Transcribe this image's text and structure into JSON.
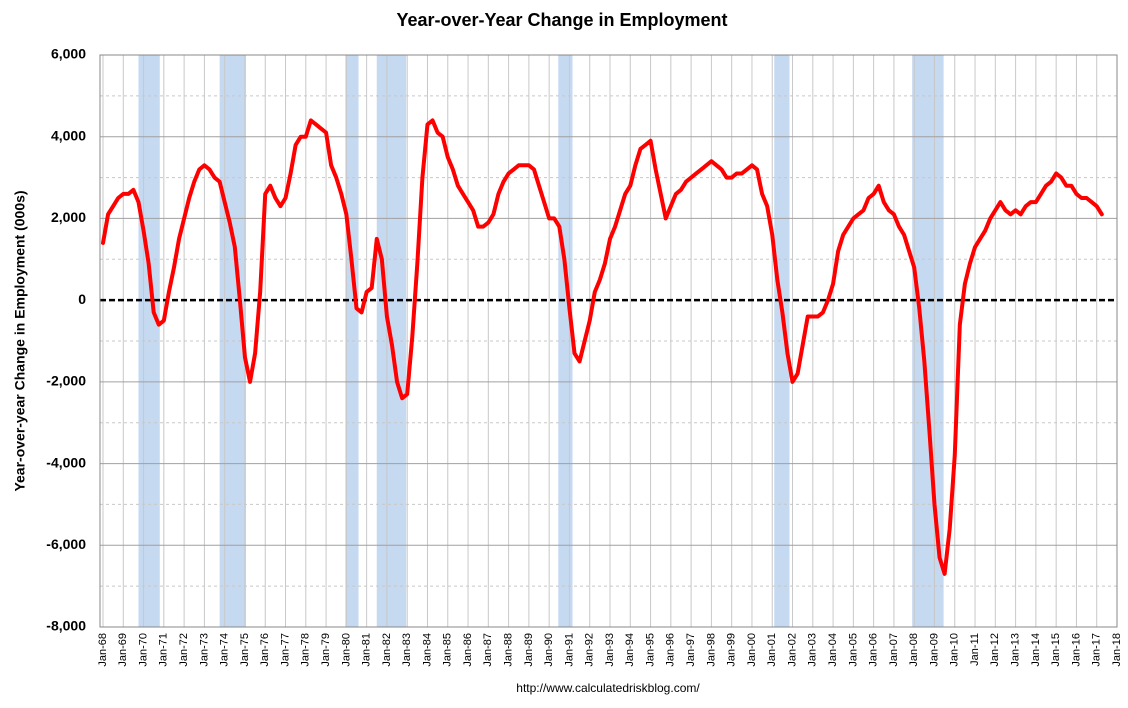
{
  "chart_data": {
    "type": "line",
    "title": "Year-over-Year Change in Employment",
    "y_label": "Year-over-year Change in Employment (000s)",
    "source": "http://www.calculatedriskblog.com/",
    "categories": [
      "Jan-68",
      null,
      null,
      null,
      "Jan-69",
      null,
      null,
      null,
      "Jan-70",
      null,
      null,
      null,
      "Jan-71",
      null,
      null,
      null,
      "Jan-72",
      null,
      null,
      null,
      "Jan-73",
      null,
      null,
      null,
      "Jan-74",
      null,
      null,
      null,
      "Jan-75",
      null,
      null,
      null,
      "Jan-76",
      null,
      null,
      null,
      "Jan-77",
      null,
      null,
      null,
      "Jan-78",
      null,
      null,
      null,
      "Jan-79",
      null,
      null,
      null,
      "Jan-80",
      null,
      null,
      null,
      "Jan-81",
      null,
      null,
      null,
      "Jan-82",
      null,
      null,
      null,
      "Jan-83",
      null,
      null,
      null,
      "Jan-84",
      null,
      null,
      null,
      "Jan-85",
      null,
      null,
      null,
      "Jan-86",
      null,
      null,
      null,
      "Jan-87",
      null,
      null,
      null,
      "Jan-88",
      null,
      null,
      null,
      "Jan-89",
      null,
      null,
      null,
      "Jan-90",
      null,
      null,
      null,
      "Jan-91",
      null,
      null,
      null,
      "Jan-92",
      null,
      null,
      null,
      "Jan-93",
      null,
      null,
      null,
      "Jan-94",
      null,
      null,
      null,
      "Jan-95",
      null,
      null,
      null,
      "Jan-96",
      null,
      null,
      null,
      "Jan-97",
      null,
      null,
      null,
      "Jan-98",
      null,
      null,
      null,
      "Jan-99",
      null,
      null,
      null,
      "Jan-00",
      null,
      null,
      null,
      "Jan-01",
      null,
      null,
      null,
      "Jan-02",
      null,
      null,
      null,
      "Jan-03",
      null,
      null,
      null,
      "Jan-04",
      null,
      null,
      null,
      "Jan-05",
      null,
      null,
      null,
      "Jan-06",
      null,
      null,
      null,
      "Jan-07",
      null,
      null,
      null,
      "Jan-08",
      null,
      null,
      null,
      "Jan-09",
      null,
      null,
      null,
      "Jan-10",
      null,
      null,
      null,
      "Jan-11",
      null,
      null,
      null,
      "Jan-12",
      null,
      null,
      null,
      "Jan-13",
      null,
      null,
      null,
      "Jan-14",
      null,
      null,
      null,
      "Jan-15",
      null,
      null,
      null,
      "Jan-16",
      null,
      null,
      null,
      "Jan-17",
      null,
      null,
      null,
      "Jan-18"
    ],
    "series": [
      {
        "color": "#ff0000",
        "values": [
          1400,
          2100,
          2300,
          2500,
          2600,
          2600,
          2700,
          2400,
          1700,
          900,
          -300,
          -600,
          -500,
          200,
          800,
          1500,
          2000,
          2500,
          2900,
          3200,
          3300,
          3200,
          3000,
          2900,
          2400,
          1900,
          1300,
          0,
          -1400,
          -2000,
          -1300,
          200,
          2600,
          2800,
          2500,
          2300,
          2500,
          3100,
          3800,
          4000,
          4000,
          4400,
          4300,
          4200,
          4100,
          3300,
          3000,
          2600,
          2100,
          1000,
          -200,
          -300,
          200,
          300,
          1500,
          1000,
          -400,
          -1100,
          -2000,
          -2400,
          -2300,
          -900,
          900,
          3000,
          4300,
          4400,
          4100,
          4000,
          3500,
          3200,
          2800,
          2600,
          2400,
          2200,
          1800,
          1800,
          1900,
          2100,
          2600,
          2900,
          3100,
          3200,
          3300,
          3300,
          3300,
          3200,
          2800,
          2400,
          2000,
          2000,
          1800,
          1000,
          -200,
          -1300,
          -1500,
          -1000,
          -500,
          200,
          500,
          900,
          1500,
          1800,
          2200,
          2600,
          2800,
          3300,
          3700,
          3800,
          3900,
          3200,
          2600,
          2000,
          2300,
          2600,
          2700,
          2900,
          3000,
          3100,
          3200,
          3300,
          3400,
          3300,
          3200,
          3000,
          3000,
          3100,
          3100,
          3200,
          3300,
          3200,
          2600,
          2300,
          1600,
          500,
          -300,
          -1300,
          -2000,
          -1800,
          -1100,
          -400,
          -400,
          -400,
          -300,
          0,
          400,
          1200,
          1600,
          1800,
          2000,
          2100,
          2200,
          2500,
          2600,
          2800,
          2400,
          2200,
          2100,
          1800,
          1600,
          1200,
          800,
          -200,
          -1500,
          -3200,
          -5000,
          -6300,
          -6700,
          -5600,
          -3800,
          -600,
          400,
          900,
          1300,
          1500,
          1700,
          2000,
          2200,
          2400,
          2200,
          2100,
          2200,
          2100,
          2300,
          2400,
          2400,
          2600,
          2800,
          2900,
          3100,
          3000,
          2800,
          2800,
          2600,
          2500,
          2500,
          2400,
          2300,
          2100,
          null,
          null,
          null
        ]
      }
    ],
    "recessions": [
      [
        1969.75,
        1970.8
      ],
      [
        1973.75,
        1975.05
      ],
      [
        1979.95,
        1980.6
      ],
      [
        1981.5,
        1982.95
      ],
      [
        1990.45,
        1991.15
      ],
      [
        2001.1,
        2001.85
      ],
      [
        2007.9,
        2009.45
      ]
    ],
    "category_start_year": 1968,
    "periods_per_year": 4,
    "recession_color": "#c5d9f1",
    "ylim": [
      -8000,
      6000
    ],
    "yticks": [
      {
        "value": -8000,
        "label": "-8,000"
      },
      {
        "value": -6000,
        "label": "-6,000"
      },
      {
        "value": -4000,
        "label": "-4,000"
      },
      {
        "value": -2000,
        "label": "-2,000"
      },
      0,
      {
        "value": 2000,
        "label": "2,000"
      },
      {
        "value": 4000,
        "label": "4,000"
      },
      {
        "value": 6000,
        "label": "6,000"
      }
    ],
    "minor_yticks": [
      -7000,
      -5000,
      -3000,
      -1000,
      1000,
      3000,
      5000
    ],
    "grid": true
  }
}
